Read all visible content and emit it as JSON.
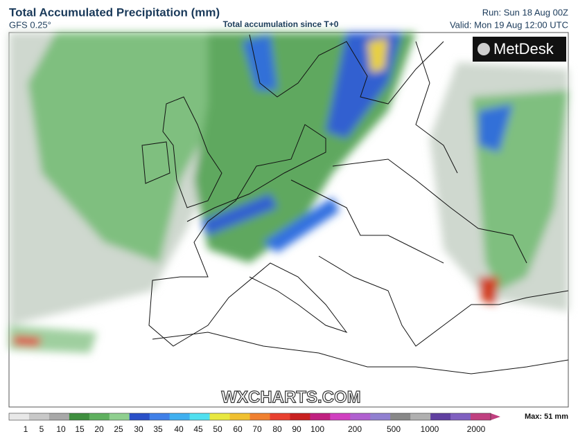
{
  "header": {
    "title": "Total Accumulated Precipitation (mm)",
    "model": "GFS 0.25°",
    "subtitle": "Total accumulation since T+0",
    "run": "Run: Sun 18 Aug 00Z",
    "valid": "Valid: Mon 19 Aug 12:00 UTC"
  },
  "logo": "MetDesk",
  "watermark": "WXCHARTS.COM",
  "legend": {
    "ticks": [
      1,
      5,
      10,
      15,
      20,
      25,
      30,
      35,
      40,
      45,
      50,
      60,
      70,
      80,
      90,
      100,
      200,
      500,
      1000,
      2000
    ],
    "colors": [
      "#e8e8e8",
      "#c8c8c8",
      "#a8a8a8",
      "#3f8f3f",
      "#5fb05f",
      "#8fcf8f",
      "#2a50c8",
      "#4080e8",
      "#40b0f0",
      "#50e0f0",
      "#e8e840",
      "#f0c030",
      "#f08030",
      "#e84030",
      "#c82020",
      "#c02080",
      "#d040c0",
      "#b060d0",
      "#9080d0",
      "#888888",
      "#b0b0b0",
      "#6040a0",
      "#8060c0",
      "#c04080"
    ],
    "max": "Max: 51 mm"
  }
}
